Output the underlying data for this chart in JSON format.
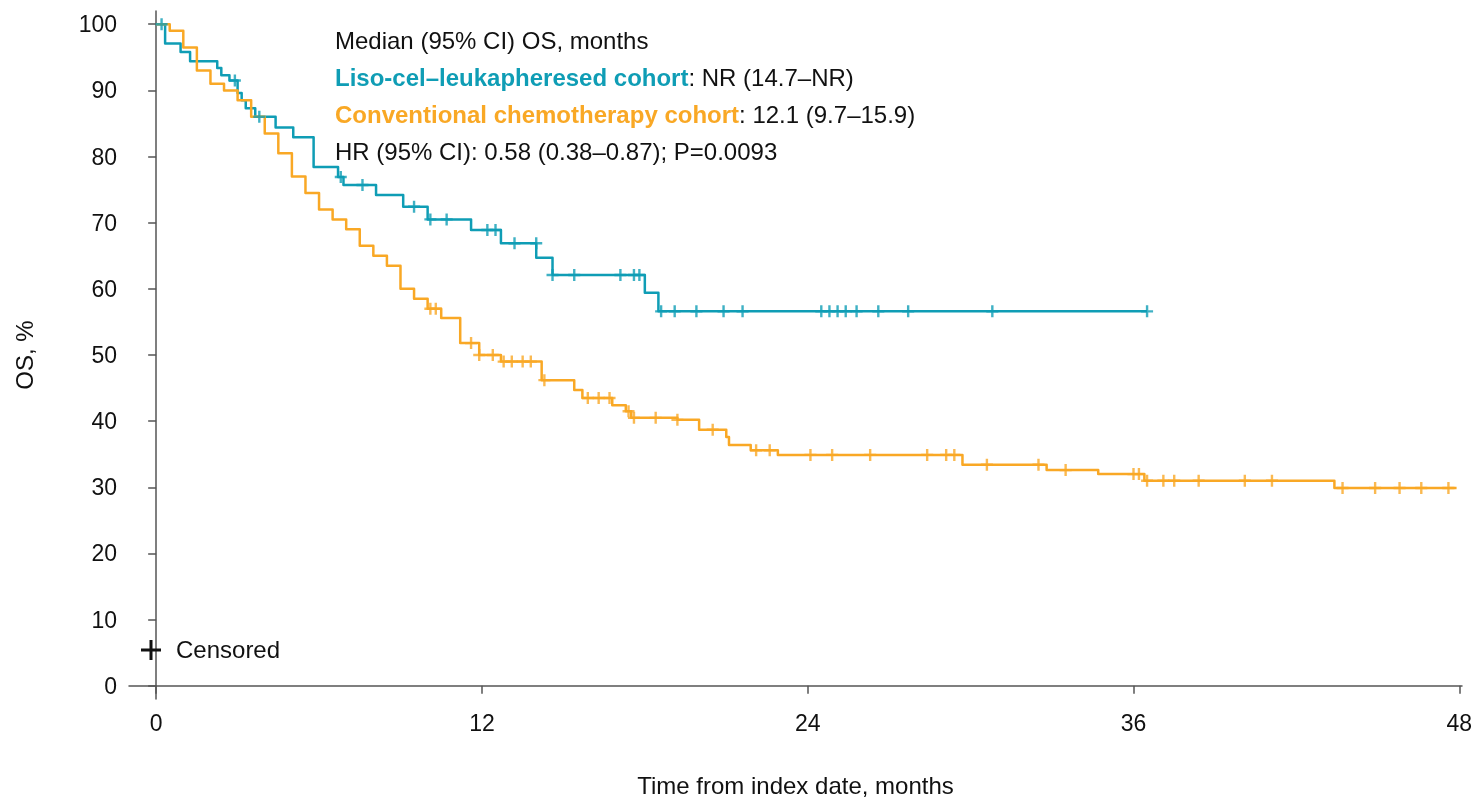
{
  "chart_data": {
    "type": "step",
    "xlabel": "Time from index date, months",
    "ylabel": "OS, %",
    "xlim": [
      -1,
      48.1
    ],
    "xticks": [
      0,
      12,
      24,
      36,
      48
    ],
    "ylim": [
      -2,
      102
    ],
    "yticks": [
      0,
      10,
      20,
      30,
      40,
      50,
      60,
      70,
      80,
      90,
      100
    ],
    "grid": false,
    "annotations": [
      "Median (95% CI) OS, months",
      ": NR (14.7–NR)",
      ": 12.1 (9.7–15.9)",
      "HR (95% CI): 0.58 (0.38–0.87); P=0.0093",
      "Censored"
    ],
    "series": [
      {
        "name": "Liso-cel–leukapheresed cohort",
        "color": "#0f9db5",
        "x": [
          0,
          0.33,
          0.9,
          1.25,
          2.25,
          2.4,
          2.7,
          3.0,
          3.15,
          3.3,
          3.65,
          4.4,
          5.05,
          5.8,
          6.7,
          6.9,
          8.1,
          9.1,
          10.0,
          11.6,
          12.7,
          14.0,
          14.6,
          18.0,
          18.5,
          36.5
        ],
        "values": [
          100,
          97.1,
          95.8,
          94.4,
          93.4,
          92.3,
          91.5,
          89.6,
          88.5,
          87.3,
          86,
          84.4,
          82.9,
          78.4,
          76.9,
          75.7,
          74.2,
          72.4,
          70.5,
          68.9,
          66.9,
          64.7,
          62.1,
          59.4,
          56.6,
          56.6
        ]
      },
      {
        "name": "Conventional chemotherapy cohort",
        "color": "#f9a825",
        "x": [
          0,
          0.5,
          1.0,
          1.5,
          2.0,
          2.5,
          3.0,
          3.5,
          4.0,
          4.5,
          5.0,
          5.5,
          6.0,
          6.5,
          7.0,
          7.5,
          8.0,
          8.5,
          9.0,
          9.5,
          10.0,
          10.5,
          11.2,
          11.9,
          12.7,
          14.2,
          15.4,
          15.7,
          16.8,
          17.3,
          17.5,
          19.2,
          20.0,
          21.0,
          21.1,
          21.9,
          22.9,
          29.7,
          32.8,
          34.7,
          36.4,
          43.4,
          47.9
        ],
        "values": [
          100,
          99,
          96.5,
          93,
          91,
          90,
          88.5,
          86,
          83.5,
          80.5,
          77,
          74.5,
          72,
          70.5,
          69,
          66.5,
          65,
          63.5,
          60,
          58.5,
          57,
          55.6,
          51.8,
          50,
          49,
          46.2,
          44.7,
          43.5,
          42.4,
          41.5,
          40.5,
          40.2,
          38.7,
          37.6,
          36.4,
          35.6,
          34.9,
          33.4,
          32.6,
          32.0,
          31.0,
          29.9,
          29.9
        ]
      },
      {
        "type": "scatter",
        "marker": "cross",
        "color": "#0f9db5",
        "x": [
          0.2,
          2.9,
          3.8,
          6.8,
          7.6,
          9.5,
          10.1,
          10.7,
          12.2,
          12.5,
          13.2,
          14.0,
          14.6,
          15.4,
          17.1,
          17.6,
          17.8,
          18.6,
          19.1,
          19.9,
          20.9,
          21.6,
          24.5,
          24.8,
          25.1,
          25.4,
          25.8,
          26.6,
          27.7,
          30.8,
          36.5
        ],
        "values": [
          100,
          91.5,
          86,
          76.9,
          75.7,
          72.4,
          70.5,
          70.5,
          68.9,
          68.9,
          66.9,
          66.9,
          62.1,
          62.1,
          62.1,
          62.1,
          62.1,
          56.6,
          56.6,
          56.6,
          56.6,
          56.6,
          56.6,
          56.6,
          56.6,
          56.6,
          56.6,
          56.6,
          56.6,
          56.6,
          56.6
        ]
      },
      {
        "type": "scatter",
        "marker": "cross",
        "color": "#f9a825",
        "x": [
          10.1,
          10.3,
          11.6,
          11.9,
          12.4,
          12.8,
          13.1,
          13.5,
          13.8,
          14.3,
          15.9,
          16.3,
          16.7,
          17.4,
          17.6,
          18.4,
          19.2,
          20.5,
          22.1,
          22.6,
          24.1,
          24.9,
          26.3,
          28.4,
          29.1,
          29.4,
          30.6,
          32.5,
          33.5,
          36.0,
          36.2,
          36.5,
          37.1,
          37.5,
          38.4,
          40.1,
          41.1,
          43.7,
          44.9,
          45.8,
          46.6,
          47.6
        ],
        "values": [
          57,
          57,
          51.8,
          50,
          50,
          49,
          49,
          49,
          49,
          46.2,
          43.5,
          43.5,
          43.5,
          41.5,
          40.5,
          40.5,
          40.2,
          38.7,
          35.6,
          35.6,
          34.9,
          34.9,
          34.9,
          34.9,
          34.9,
          34.9,
          33.4,
          33.4,
          32.6,
          32.0,
          32.0,
          31.0,
          31.0,
          31.0,
          31.0,
          31.0,
          31.0,
          29.9,
          29.9,
          29.9,
          29.9,
          29.9
        ]
      }
    ]
  }
}
